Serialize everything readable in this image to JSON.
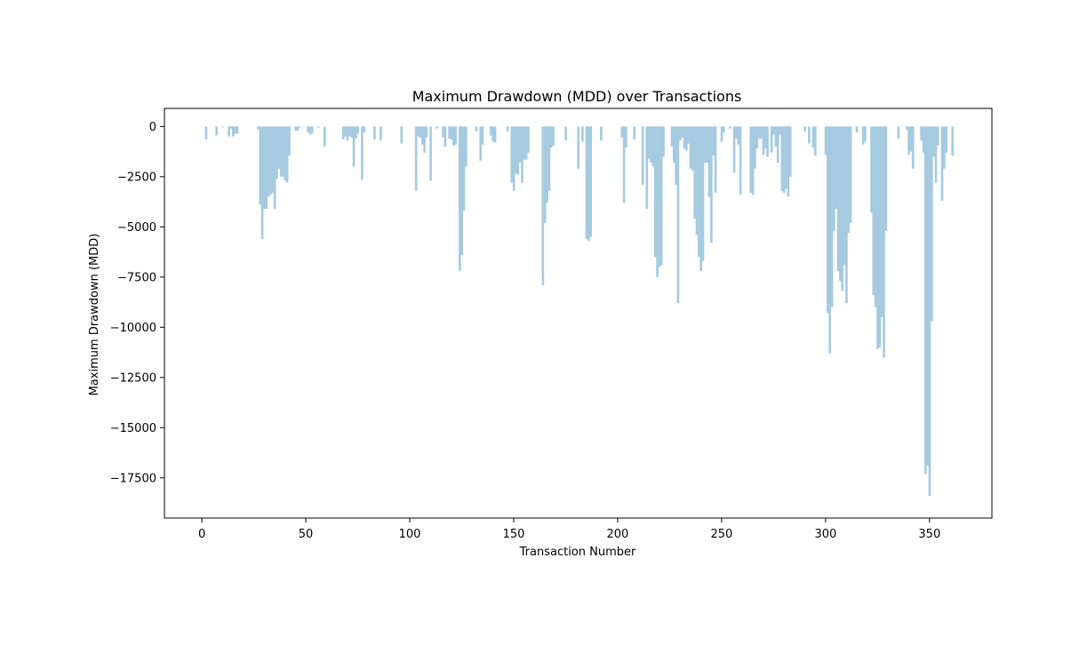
{
  "chart_data": {
    "type": "bar",
    "title": "Maximum Drawdown (MDD) over Transactions",
    "xlabel": "Transaction Number",
    "ylabel": "Maximum Drawdown (MDD)",
    "xlim": [
      -18,
      380
    ],
    "ylim": [
      -19500,
      900
    ],
    "x_ticks": [
      0,
      50,
      100,
      150,
      200,
      250,
      300,
      350
    ],
    "y_ticks": [
      0,
      -2500,
      -5000,
      -7500,
      -10000,
      -12500,
      -15000,
      -17500
    ],
    "y_tick_labels": [
      "0",
      "−2500",
      "−5000",
      "−7500",
      "−10000",
      "−12500",
      "−15000",
      "−17500"
    ],
    "grid": false,
    "legend": "none",
    "bar_color": "#a6cae0",
    "points": [
      [
        2,
        -650
      ],
      [
        7,
        -450
      ],
      [
        10,
        -50
      ],
      [
        13,
        -500
      ],
      [
        14,
        -100
      ],
      [
        15,
        -500
      ],
      [
        16,
        -350
      ],
      [
        17,
        -350
      ],
      [
        27,
        -150
      ],
      [
        28,
        -3900
      ],
      [
        29,
        -5600
      ],
      [
        30,
        -4100
      ],
      [
        31,
        -4100
      ],
      [
        32,
        -3500
      ],
      [
        33,
        -3400
      ],
      [
        34,
        -3300
      ],
      [
        35,
        -4100
      ],
      [
        36,
        -2600
      ],
      [
        37,
        -2100
      ],
      [
        38,
        -2500
      ],
      [
        39,
        -2500
      ],
      [
        40,
        -2700
      ],
      [
        41,
        -2800
      ],
      [
        42,
        -1450
      ],
      [
        45,
        -200
      ],
      [
        46,
        -200
      ],
      [
        47,
        -50
      ],
      [
        51,
        -300
      ],
      [
        52,
        -400
      ],
      [
        53,
        -350
      ],
      [
        56,
        -50
      ],
      [
        59,
        -1000
      ],
      [
        68,
        -650
      ],
      [
        69,
        -500
      ],
      [
        70,
        -700
      ],
      [
        71,
        -500
      ],
      [
        72,
        -550
      ],
      [
        73,
        -2000
      ],
      [
        74,
        -600
      ],
      [
        75,
        -350
      ],
      [
        77,
        -2650
      ],
      [
        78,
        -300
      ],
      [
        83,
        -650
      ],
      [
        86,
        -700
      ],
      [
        96,
        -850
      ],
      [
        103,
        -3200
      ],
      [
        104,
        -500
      ],
      [
        105,
        -550
      ],
      [
        106,
        -900
      ],
      [
        107,
        -1300
      ],
      [
        108,
        -550
      ],
      [
        110,
        -2700
      ],
      [
        113,
        -100
      ],
      [
        116,
        -550
      ],
      [
        117,
        -1000
      ],
      [
        119,
        -600
      ],
      [
        120,
        -650
      ],
      [
        121,
        -950
      ],
      [
        122,
        -900
      ],
      [
        124,
        -7200
      ],
      [
        125,
        -6400
      ],
      [
        126,
        -4200
      ],
      [
        127,
        -2000
      ],
      [
        132,
        -250
      ],
      [
        134,
        -1700
      ],
      [
        135,
        -900
      ],
      [
        139,
        -450
      ],
      [
        140,
        -750
      ],
      [
        141,
        -800
      ],
      [
        147,
        -250
      ],
      [
        149,
        -2800
      ],
      [
        150,
        -3200
      ],
      [
        151,
        -2350
      ],
      [
        152,
        -2400
      ],
      [
        153,
        -1800
      ],
      [
        154,
        -2800
      ],
      [
        155,
        -1650
      ],
      [
        156,
        -1650
      ],
      [
        157,
        -1300
      ],
      [
        164,
        -7900
      ],
      [
        165,
        -4800
      ],
      [
        166,
        -3800
      ],
      [
        167,
        -3200
      ],
      [
        168,
        -1050
      ],
      [
        169,
        -950
      ],
      [
        175,
        -700
      ],
      [
        181,
        -2100
      ],
      [
        183,
        -750
      ],
      [
        185,
        -5600
      ],
      [
        186,
        -5700
      ],
      [
        187,
        -5500
      ],
      [
        192,
        -700
      ],
      [
        202,
        -550
      ],
      [
        203,
        -3800
      ],
      [
        204,
        -1050
      ],
      [
        208,
        -650
      ],
      [
        212,
        -2900
      ],
      [
        214,
        -4100
      ],
      [
        215,
        -1600
      ],
      [
        216,
        -1800
      ],
      [
        217,
        -2000
      ],
      [
        218,
        -6500
      ],
      [
        219,
        -7500
      ],
      [
        220,
        -7000
      ],
      [
        221,
        -6900
      ],
      [
        222,
        -1500
      ],
      [
        226,
        -1000
      ],
      [
        227,
        -1800
      ],
      [
        228,
        -2900
      ],
      [
        229,
        -8800
      ],
      [
        230,
        -700
      ],
      [
        231,
        -550
      ],
      [
        232,
        -1100
      ],
      [
        233,
        -1200
      ],
      [
        234,
        -850
      ],
      [
        235,
        -2100
      ],
      [
        236,
        -2200
      ],
      [
        237,
        -4600
      ],
      [
        238,
        -5400
      ],
      [
        239,
        -6500
      ],
      [
        240,
        -7200
      ],
      [
        241,
        -6700
      ],
      [
        242,
        -1800
      ],
      [
        243,
        -1800
      ],
      [
        244,
        -3500
      ],
      [
        245,
        -5800
      ],
      [
        246,
        -1450
      ],
      [
        247,
        -3300
      ],
      [
        250,
        -750
      ],
      [
        251,
        -300
      ],
      [
        254,
        -100
      ],
      [
        256,
        -2300
      ],
      [
        257,
        -600
      ],
      [
        258,
        -900
      ],
      [
        259,
        -3400
      ],
      [
        264,
        -3300
      ],
      [
        265,
        -3400
      ],
      [
        266,
        -2100
      ],
      [
        267,
        -1100
      ],
      [
        268,
        -600
      ],
      [
        269,
        -600
      ],
      [
        270,
        -1400
      ],
      [
        271,
        -1100
      ],
      [
        272,
        -1500
      ],
      [
        274,
        -1300
      ],
      [
        275,
        -400
      ],
      [
        276,
        -1000
      ],
      [
        277,
        -1800
      ],
      [
        278,
        -400
      ],
      [
        279,
        -3200
      ],
      [
        280,
        -3300
      ],
      [
        281,
        -3100
      ],
      [
        282,
        -3500
      ],
      [
        283,
        -2500
      ],
      [
        290,
        -250
      ],
      [
        292,
        -850
      ],
      [
        294,
        -1050
      ],
      [
        295,
        -1450
      ],
      [
        300,
        -1400
      ],
      [
        301,
        -9300
      ],
      [
        302,
        -11300
      ],
      [
        303,
        -9000
      ],
      [
        304,
        -5200
      ],
      [
        305,
        -4100
      ],
      [
        306,
        -7200
      ],
      [
        307,
        -7700
      ],
      [
        308,
        -8200
      ],
      [
        309,
        -6900
      ],
      [
        310,
        -8800
      ],
      [
        311,
        -5300
      ],
      [
        312,
        -4800
      ],
      [
        315,
        -300
      ],
      [
        318,
        -900
      ],
      [
        319,
        -750
      ],
      [
        322,
        -4300
      ],
      [
        323,
        -8400
      ],
      [
        324,
        -9000
      ],
      [
        325,
        -11100
      ],
      [
        326,
        -11000
      ],
      [
        327,
        -9500
      ],
      [
        328,
        -11500
      ],
      [
        329,
        -5200
      ],
      [
        335,
        -600
      ],
      [
        339,
        -150
      ],
      [
        340,
        -1400
      ],
      [
        341,
        -1250
      ],
      [
        342,
        -2100
      ],
      [
        346,
        -700
      ],
      [
        347,
        -1300
      ],
      [
        348,
        -17300
      ],
      [
        349,
        -16900
      ],
      [
        350,
        -18400
      ],
      [
        351,
        -9700
      ],
      [
        352,
        -1500
      ],
      [
        353,
        -2800
      ],
      [
        354,
        -950
      ],
      [
        356,
        -3700
      ],
      [
        357,
        -2100
      ],
      [
        358,
        -1300
      ],
      [
        361,
        -1450
      ]
    ]
  }
}
